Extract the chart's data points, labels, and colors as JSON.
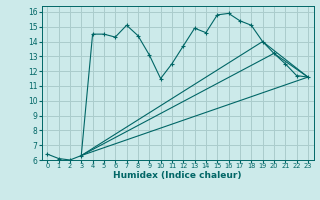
{
  "bg_color": "#cceaea",
  "grid_color": "#aacccc",
  "line_color": "#006666",
  "xlabel": "Humidex (Indice chaleur)",
  "xlabel_fontsize": 6.5,
  "ylim": [
    6,
    16.4
  ],
  "xlim": [
    -0.5,
    23.5
  ],
  "yticks": [
    6,
    7,
    8,
    9,
    10,
    11,
    12,
    13,
    14,
    15,
    16
  ],
  "xticks": [
    0,
    1,
    2,
    3,
    4,
    5,
    6,
    7,
    8,
    9,
    10,
    11,
    12,
    13,
    14,
    15,
    16,
    17,
    18,
    19,
    20,
    21,
    22,
    23
  ],
  "series1_x": [
    0,
    1,
    2,
    3,
    4,
    5,
    6,
    7,
    8,
    9,
    10,
    11,
    12,
    13,
    14,
    15,
    16,
    17,
    18,
    19,
    20,
    21,
    22,
    23
  ],
  "series1_y": [
    6.4,
    6.1,
    6.0,
    6.3,
    14.5,
    14.5,
    14.3,
    15.1,
    14.4,
    13.1,
    11.5,
    12.5,
    13.7,
    14.9,
    14.6,
    15.8,
    15.9,
    15.4,
    15.1,
    14.0,
    13.2,
    12.5,
    11.7,
    11.6
  ],
  "series2_x": [
    3,
    23
  ],
  "series2_y": [
    6.3,
    11.6
  ],
  "series3_x": [
    3,
    20,
    23
  ],
  "series3_y": [
    6.3,
    13.2,
    11.6
  ],
  "series4_x": [
    3,
    19,
    23
  ],
  "series4_y": [
    6.3,
    14.0,
    11.6
  ]
}
